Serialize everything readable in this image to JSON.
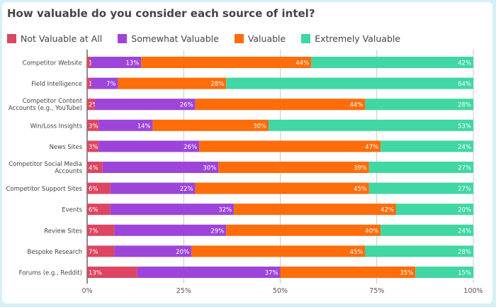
{
  "chart_data": {
    "type": "bar",
    "orientation": "horizontal",
    "stacked": true,
    "title": "How valuable do you consider each source of intel?",
    "categories": [
      "Competitor Website",
      "Field Intelligence",
      "Competitor Content Accounts (e.g., YouTube)",
      "Win/Loss Insights",
      "News Sites",
      "Competitor Social Media Accounts",
      "Competitor Support Sites",
      "Events",
      "Review Sites",
      "Bespoke Research",
      "Forums (e.g., Reddit)"
    ],
    "series": [
      {
        "name": "Not Valuable at All",
        "color": "#dc4662",
        "values": [
          1,
          1,
          2,
          3,
          3,
          4,
          6,
          6,
          7,
          7,
          13
        ]
      },
      {
        "name": "Somewhat Valuable",
        "color": "#9d45d9",
        "values": [
          13,
          7,
          26,
          14,
          26,
          30,
          22,
          32,
          29,
          20,
          37
        ]
      },
      {
        "name": "Valuable",
        "color": "#ff6c0a",
        "values": [
          44,
          28,
          44,
          30,
          47,
          39,
          45,
          42,
          40,
          45,
          35
        ]
      },
      {
        "name": "Extremely Valuable",
        "color": "#40d7a2",
        "values": [
          42,
          64,
          28,
          53,
          24,
          27,
          27,
          20,
          24,
          28,
          15
        ]
      }
    ],
    "xlim": [
      0,
      100
    ],
    "xticks": [
      "0%",
      "25%",
      "50%",
      "75%",
      "100%"
    ],
    "value_suffix": "%",
    "legend": "top-left",
    "grid": true
  }
}
